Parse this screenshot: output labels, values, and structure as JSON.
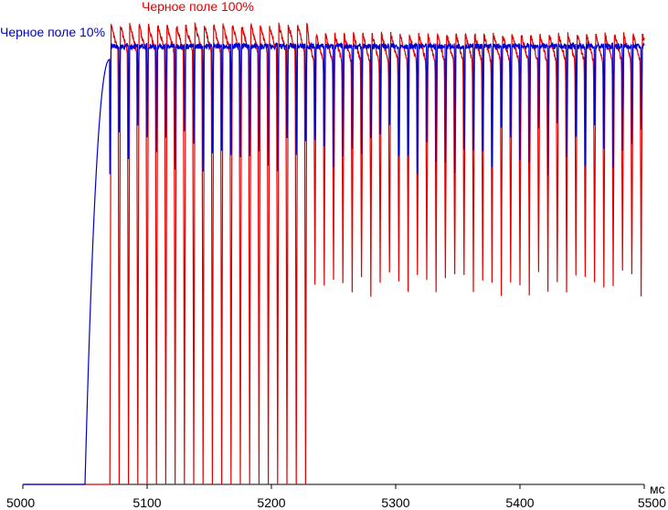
{
  "chart_data": {
    "type": "line",
    "xlabel": "",
    "x_unit_label": "мс",
    "ylabel": "",
    "xlim": [
      5000,
      5500
    ],
    "ylim": [
      0,
      1
    ],
    "x_ticks": [
      5000,
      5100,
      5200,
      5300,
      5400,
      5500
    ],
    "y_ticks_visible": false,
    "grid": false,
    "series": [
      {
        "name": "Черное поле 100%",
        "color": "#e00000",
        "baseline_level": 0.0,
        "rise_start_ms": 5070,
        "plateau_level": 0.965,
        "pulse_period_ms": 7.5,
        "pulse_dip_min_before_5230ms": 0.0,
        "pulse_dip_min_after_5235ms": 0.4
      },
      {
        "name": "Черное поле 10%",
        "color": "#0000d0",
        "baseline_level": 0.0,
        "rise_start_ms": 5050,
        "rise_end_ms": 5070,
        "plateau_level": 0.94,
        "pulse_period_ms": 7.5,
        "pulse_dip_min": 0.66
      }
    ]
  }
}
